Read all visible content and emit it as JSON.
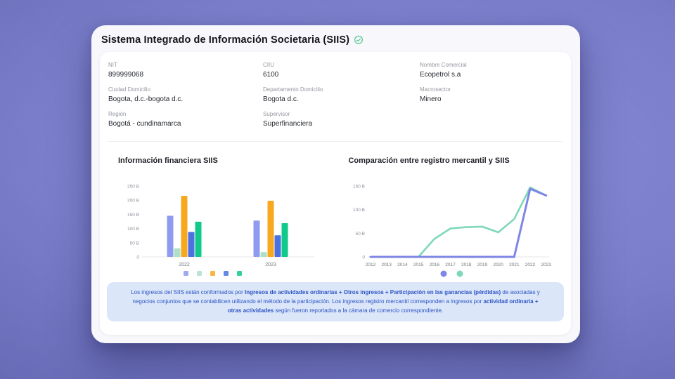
{
  "header": {
    "title": "Sistema Integrado de Información Societaria (SIIS)",
    "verified_icon": "verified-badge-icon",
    "verified_color": "#45c287"
  },
  "fields": [
    {
      "label": "NIT",
      "value": "899999068"
    },
    {
      "label": "CIIU",
      "value": "6100"
    },
    {
      "label": "Nombre Comercial",
      "value": "Ecopetrol s.a"
    },
    {
      "label": "Ciudad Domicilio",
      "value": "Bogota, d.c.-bogota d.c."
    },
    {
      "label": "Departamento Domicilio",
      "value": "Bogota d.c."
    },
    {
      "label": "Macrosector",
      "value": "Minero"
    },
    {
      "label": "Región",
      "value": "Bogotá - cundinamarca"
    },
    {
      "label": "Supervisor",
      "value": "Superfinanciera"
    }
  ],
  "chart_data": [
    {
      "type": "bar",
      "title": "Información financiera SIIS",
      "categories": [
        "2022",
        "2023"
      ],
      "series": [
        {
          "name": "",
          "color": "#8f9bee",
          "values": [
            145,
            128
          ]
        },
        {
          "name": "",
          "color": "#aedfc9",
          "values": [
            30,
            17
          ]
        },
        {
          "name": "",
          "color": "#f7a81f",
          "values": [
            215,
            198
          ]
        },
        {
          "name": "",
          "color": "#4c72e2",
          "values": [
            88,
            76
          ]
        },
        {
          "name": "",
          "color": "#10c98a",
          "values": [
            124,
            119
          ]
        }
      ],
      "ylabel": "",
      "xlabel": "",
      "ylim": [
        0,
        250
      ],
      "yticks": [
        0,
        50,
        100,
        150,
        200,
        250
      ],
      "ytick_labels": [
        "0",
        "50 B",
        "100 B",
        "150 B",
        "200 B",
        "250 B"
      ],
      "grid": false,
      "legend_position": "bottom",
      "legend_markers": [
        "#8f9bee",
        "#aedfc9",
        "#f7a81f",
        "#4c72e2",
        "#10c98a"
      ]
    },
    {
      "type": "line",
      "title": "Comparación entre registro mercantil y SIIS",
      "x": [
        "2012",
        "2013",
        "2014",
        "2015",
        "2016",
        "2017",
        "2018",
        "2019",
        "2020",
        "2021",
        "2022",
        "2023"
      ],
      "series": [
        {
          "name": "",
          "color": "#7fd8ba",
          "width": 2.6,
          "values": [
            0,
            0,
            0,
            0,
            38,
            60,
            63,
            64,
            52,
            80,
            147,
            130
          ]
        },
        {
          "name": "",
          "color": "#7e86e6",
          "width": 3.0,
          "values": [
            0,
            0,
            0,
            0,
            0,
            0,
            0,
            0,
            0,
            0,
            144,
            130
          ]
        }
      ],
      "ylabel": "",
      "xlabel": "",
      "ylim": [
        0,
        160
      ],
      "yticks": [
        0,
        50,
        100,
        150
      ],
      "ytick_labels": [
        "0",
        "50 B",
        "100 B",
        "150 B"
      ],
      "grid": false,
      "legend_position": "bottom",
      "legend_markers": [
        "#7e86e6",
        "#7fd8ba"
      ]
    }
  ],
  "info_note": {
    "background": "#dbe6f9",
    "text_color": "#2b52c4",
    "segments": [
      {
        "text": "Los ingresos del SIIS están conformados por ",
        "bold": false
      },
      {
        "text": "Ingresos de actividades ordinarias + Otros ingresos + Participación en las ganancias (pérdidas)",
        "bold": true
      },
      {
        "text": " de asociadas y negocios conjuntos que se contabilicen utilizando el método de la participación. Los ingresos registro mercantil corresponden a ingresos por ",
        "bold": false
      },
      {
        "text": "actividad ordinaria + otras actividades",
        "bold": true
      },
      {
        "text": " según fueron reportados a la cámara de comercio correspondiente.",
        "bold": false
      }
    ]
  },
  "axis_colors": {
    "tick_text": "#8b909a",
    "category_text": "#70757e",
    "baseline": "#e7e7ec"
  }
}
